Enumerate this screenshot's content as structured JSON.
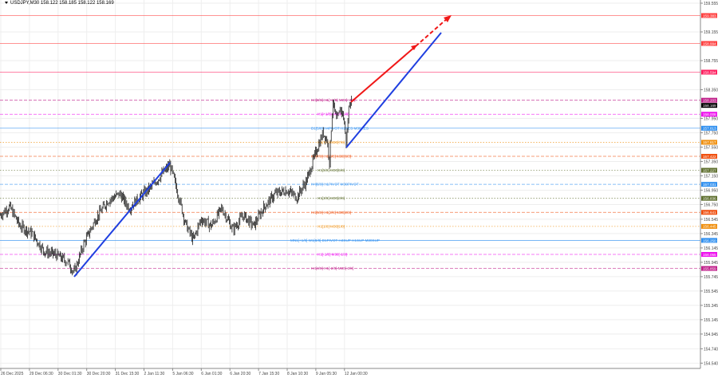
{
  "window": {
    "title": "USDJPY,M30 158.122 158.185 158.122 158.169",
    "symbol": "USDJPY",
    "timeframe": "M30",
    "ohlc": {
      "open": "158.122",
      "high": "158.185",
      "low": "158.122",
      "close": "158.169"
    }
  },
  "colors": {
    "bull_line": "#000000",
    "trend_blue": "#1f3fe0",
    "trend_red": "#f01818",
    "grid": "#eeeeee"
  },
  "price_axis": {
    "ticks": [
      "159.555",
      "159.155",
      "158.755",
      "158.350",
      "157.950",
      "157.750",
      "157.550",
      "157.350",
      "157.150",
      "156.950",
      "156.750",
      "156.545",
      "156.345",
      "156.145",
      "155.945",
      "155.745",
      "155.545",
      "155.345",
      "155.145",
      "154.945",
      "154.740",
      "154.540"
    ]
  },
  "time_axis": {
    "ticks": [
      "26 Dec 2025",
      "29 Dec 06:30",
      "30 Dec 01:30",
      "30 Dec 20:30",
      "31 Dec 15:30",
      "2 Jan 11:30",
      "5 Jan 06:30",
      "6 Jan 01:30",
      "6 Jan 20:30",
      "7 Jan 15:30",
      "8 Jan 10:30",
      "9 Jan 05:30",
      "12 Jan 00:30"
    ]
  },
  "current_price": {
    "value": "158.169",
    "color": "#000000"
  },
  "levels": [
    {
      "price": 159.383,
      "tag": "159.383",
      "label": "",
      "color": "#ff4040",
      "style": "solid"
    },
    {
      "price": 158.994,
      "tag": "158.994",
      "label": "",
      "color": "#ff4040",
      "style": "solid"
    },
    {
      "price": 158.594,
      "tag": "158.594",
      "label": "",
      "color": "#ff2060",
      "style": "solid"
    },
    {
      "price": 158.203,
      "tag": "158.203",
      "label": "H4[8/8] H1[+2/8] M30[+2/8]",
      "color": "#c0208a",
      "style": "dash"
    },
    {
      "price": 158.008,
      "tag": "158.008",
      "label": "H1[+1/8] M30[+1/8]",
      "color": "#ee10ee",
      "style": "dash"
    },
    {
      "price": 157.813,
      "tag": "157.813",
      "label": "D1[5/8] H4PIVOT H1RES M30RES",
      "color": "#3090f0",
      "style": "solid"
    },
    {
      "price": 157.617,
      "tag": "157.617",
      "label": "H1[7/8] M30[7/8]",
      "color": "#f09010",
      "style": "dot"
    },
    {
      "price": 157.422,
      "tag": "157.422",
      "label": "H4[7/8] H1[6/8] M30[6/8]",
      "color": "#f05010",
      "style": "dash"
    },
    {
      "price": 157.227,
      "tag": "157.227",
      "label": "H1[5/8] M30[5/8]",
      "color": "#607030",
      "style": "dot"
    },
    {
      "price": 157.031,
      "tag": "157.031",
      "label": "H4[6/8] H1PIVOT M30PIVOT",
      "color": "#3090f0",
      "style": "dash"
    },
    {
      "price": 156.836,
      "tag": "156.836",
      "label": "H1[3/8] M30[3/8]",
      "color": "#607030",
      "style": "dot"
    },
    {
      "price": 156.641,
      "tag": "156.641",
      "label": "H4[5/8] H1[2/8] M30[2/8]",
      "color": "#f05010",
      "style": "dash"
    },
    {
      "price": 156.445,
      "tag": "156.445",
      "label": "H1[1/8] M30[1/8]",
      "color": "#f09010",
      "style": "dot"
    },
    {
      "price": 156.25,
      "tag": "156.250",
      "label": "MN1[+1/8] W1[8/8] D1PIVOT H4SUP H1SUP M30SUP",
      "color": "#3090f0",
      "style": "solid"
    },
    {
      "price": 156.055,
      "tag": "156.055",
      "label": "H1[-1/8] M30[-1/8]",
      "color": "#ee10ee",
      "style": "dash"
    },
    {
      "price": 155.859,
      "tag": "155.859",
      "label": "H4[4/8] H1[-2/8] M30[-2/8]",
      "color": "#c0208a",
      "style": "dash"
    }
  ],
  "price_path": [
    [
      0,
      156.6
    ],
    [
      12,
      156.72
    ],
    [
      25,
      156.45
    ],
    [
      40,
      156.35
    ],
    [
      55,
      156.1
    ],
    [
      70,
      156.05
    ],
    [
      85,
      155.95
    ],
    [
      93,
      155.8
    ],
    [
      105,
      156.2
    ],
    [
      120,
      156.55
    ],
    [
      135,
      156.8
    ],
    [
      150,
      156.9
    ],
    [
      162,
      156.7
    ],
    [
      175,
      156.85
    ],
    [
      190,
      157.0
    ],
    [
      205,
      157.2
    ],
    [
      213,
      157.3
    ],
    [
      222,
      156.95
    ],
    [
      232,
      156.5
    ],
    [
      242,
      156.25
    ],
    [
      252,
      156.55
    ],
    [
      265,
      156.45
    ],
    [
      278,
      156.7
    ],
    [
      292,
      156.4
    ],
    [
      305,
      156.6
    ],
    [
      318,
      156.45
    ],
    [
      330,
      156.7
    ],
    [
      345,
      156.9
    ],
    [
      360,
      156.95
    ],
    [
      372,
      156.85
    ],
    [
      385,
      157.1
    ],
    [
      395,
      157.45
    ],
    [
      405,
      157.75
    ],
    [
      410,
      157.65
    ],
    [
      413,
      157.35
    ],
    [
      417,
      158.2
    ],
    [
      422,
      157.9
    ],
    [
      427,
      158.1
    ],
    [
      431,
      157.95
    ],
    [
      434,
      157.6
    ],
    [
      438,
      158.2
    ],
    [
      441,
      158.17
    ]
  ],
  "trendlines": [
    {
      "color": "#1f3fe0",
      "from": [
        "29 Dec 18:30",
        155.78
      ],
      "to": [
        "2 Jan 21:00",
        157.37
      ],
      "style": "solid"
    },
    {
      "color": "#1f3fe0",
      "from": [
        "12 Jan 00:30",
        157.55
      ],
      "to": [
        "future",
        159.15
      ],
      "style": "solid"
    },
    {
      "color": "#f01818",
      "from": [
        "12 Jan 04:00",
        158.15
      ],
      "to": [
        "projection",
        158.93
      ],
      "style": "solid"
    },
    {
      "color": "#f01818",
      "from": [
        "projection",
        158.93
      ],
      "to": [
        "projection",
        159.33
      ],
      "style": "dash-arrow"
    }
  ]
}
